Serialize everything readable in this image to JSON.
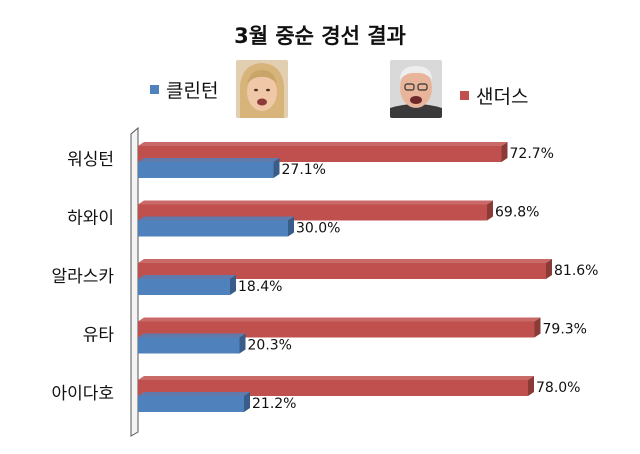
{
  "chart_data": {
    "type": "bar",
    "title": "3월 중순 경선 결과",
    "categories": [
      "워싱턴",
      "하와이",
      "알라스카",
      "유타",
      "아이다호"
    ],
    "series": [
      {
        "name": "샌더스",
        "values": [
          72.7,
          69.8,
          81.6,
          79.3,
          78.0
        ],
        "labels": [
          "72.7%",
          "69.8%",
          "81.6%",
          "79.3%",
          "78.0%"
        ],
        "color": "#c0504d"
      },
      {
        "name": "클린턴",
        "values": [
          27.1,
          30.0,
          18.4,
          20.3,
          21.2
        ],
        "labels": [
          "27.1%",
          "30.0%",
          "18.4%",
          "20.3%",
          "21.2%"
        ],
        "color": "#4f81bd"
      }
    ],
    "xlim": [
      0,
      100
    ],
    "orientation": "horizontal",
    "legend": "top",
    "grid": false
  },
  "legend": {
    "clinton": "클린턴",
    "sanders": "샌더스"
  },
  "colors": {
    "red": "#c0504d",
    "blue": "#4f81bd"
  }
}
